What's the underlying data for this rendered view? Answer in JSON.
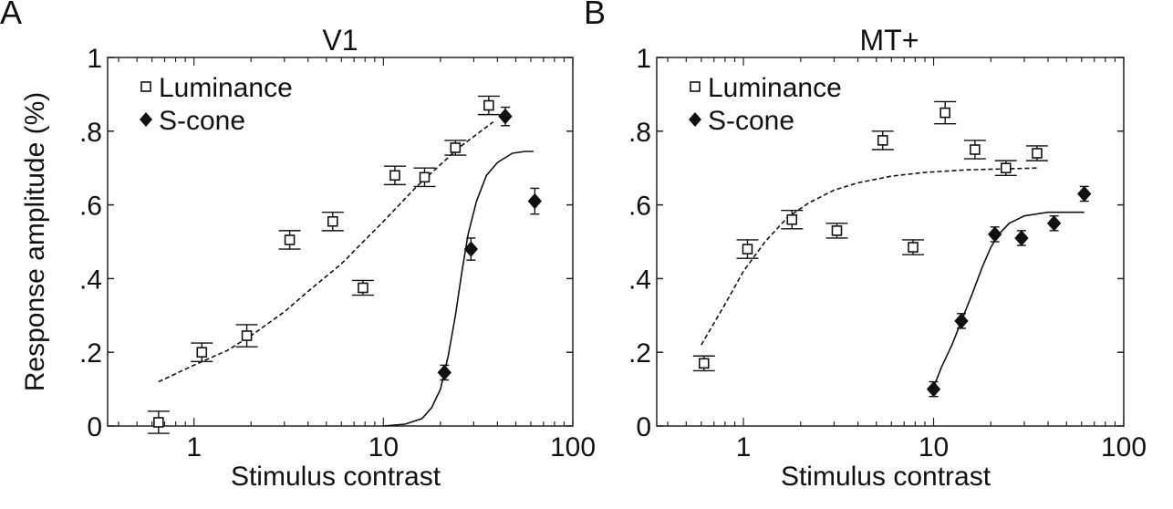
{
  "chart_data": [
    {
      "panel_letter": "A",
      "type": "scatter",
      "title": "V1",
      "xlabel": "Stimulus contrast",
      "ylabel": "Response amplitude (%)",
      "x_scale": "log",
      "xlim": [
        0.35,
        100
      ],
      "ylim": [
        0,
        1
      ],
      "x_ticks": [
        1,
        10,
        100
      ],
      "x_tick_labels": [
        "1",
        "10",
        "100"
      ],
      "y_ticks": [
        0,
        0.2,
        0.4,
        0.6,
        0.8,
        1
      ],
      "y_tick_labels": [
        "0",
        ".2",
        ".4",
        ".6",
        ".8",
        "1"
      ],
      "legend_position": "top-left",
      "series": [
        {
          "name": "Luminance",
          "marker": "open-square",
          "x": [
            0.65,
            1.1,
            1.9,
            3.2,
            5.4,
            7.8,
            11.5,
            16.5,
            24,
            36
          ],
          "y": [
            0.01,
            0.2,
            0.245,
            0.505,
            0.555,
            0.375,
            0.68,
            0.675,
            0.755,
            0.87
          ],
          "err": [
            0.03,
            0.025,
            0.03,
            0.025,
            0.025,
            0.02,
            0.025,
            0.025,
            0.02,
            0.025
          ],
          "fit": {
            "style": "dashed",
            "x": [
              0.65,
              1,
              1.5,
              2,
              3,
              4,
              6,
              10,
              15,
              25,
              38
            ],
            "y": [
              0.12,
              0.165,
              0.205,
              0.245,
              0.31,
              0.365,
              0.44,
              0.555,
              0.65,
              0.755,
              0.825
            ]
          }
        },
        {
          "name": "S-cone",
          "marker": "filled-diamond",
          "x": [
            21,
            29,
            44,
            63
          ],
          "y": [
            0.145,
            0.48,
            0.84,
            0.61
          ],
          "err": [
            0.02,
            0.03,
            0.025,
            0.035
          ],
          "fit": {
            "style": "solid",
            "x": [
              10,
              13,
              16,
              18,
              20,
              22,
              24,
              26,
              28,
              31,
              35,
              40,
              48,
              56,
              62
            ],
            "y": [
              0.0,
              0.005,
              0.02,
              0.05,
              0.1,
              0.19,
              0.3,
              0.42,
              0.52,
              0.61,
              0.68,
              0.715,
              0.74,
              0.745,
              0.745
            ]
          }
        }
      ]
    },
    {
      "panel_letter": "B",
      "type": "scatter",
      "title": "MT+",
      "xlabel": "Stimulus contrast",
      "ylabel": "",
      "x_scale": "log",
      "xlim": [
        0.35,
        100
      ],
      "ylim": [
        0,
        1
      ],
      "x_ticks": [
        1,
        10,
        100
      ],
      "x_tick_labels": [
        "1",
        "10",
        "100"
      ],
      "y_ticks": [
        0,
        0.2,
        0.4,
        0.6,
        0.8,
        1
      ],
      "y_tick_labels": [
        "0",
        ".2",
        ".4",
        ".6",
        ".8",
        "1"
      ],
      "legend_position": "top-left",
      "series": [
        {
          "name": "Luminance",
          "marker": "open-square",
          "x": [
            0.62,
            1.05,
            1.8,
            3.1,
            5.4,
            7.8,
            11.5,
            16.5,
            24,
            35
          ],
          "y": [
            0.17,
            0.48,
            0.56,
            0.53,
            0.775,
            0.485,
            0.85,
            0.75,
            0.7,
            0.74
          ],
          "err": [
            0.02,
            0.025,
            0.025,
            0.02,
            0.025,
            0.02,
            0.03,
            0.025,
            0.02,
            0.02
          ],
          "fit": {
            "style": "dashed",
            "x": [
              0.6,
              0.8,
              1,
              1.3,
              1.7,
              2.2,
              3,
              4,
              6,
              9,
              15,
              25,
              35
            ],
            "y": [
              0.22,
              0.33,
              0.42,
              0.5,
              0.565,
              0.605,
              0.64,
              0.66,
              0.678,
              0.688,
              0.695,
              0.698,
              0.7
            ]
          }
        },
        {
          "name": "S-cone",
          "marker": "filled-diamond",
          "x": [
            10,
            14,
            21,
            29,
            43,
            62
          ],
          "y": [
            0.1,
            0.285,
            0.52,
            0.51,
            0.55,
            0.63
          ],
          "err": [
            0.02,
            0.02,
            0.02,
            0.02,
            0.02,
            0.02
          ],
          "fit": {
            "style": "solid",
            "x": [
              10,
              11,
              12.5,
              14,
              16,
              18,
              20,
              22,
              25,
              30,
              40,
              62
            ],
            "y": [
              0.105,
              0.16,
              0.22,
              0.285,
              0.36,
              0.43,
              0.485,
              0.52,
              0.55,
              0.57,
              0.58,
              0.58
            ]
          }
        }
      ]
    }
  ]
}
